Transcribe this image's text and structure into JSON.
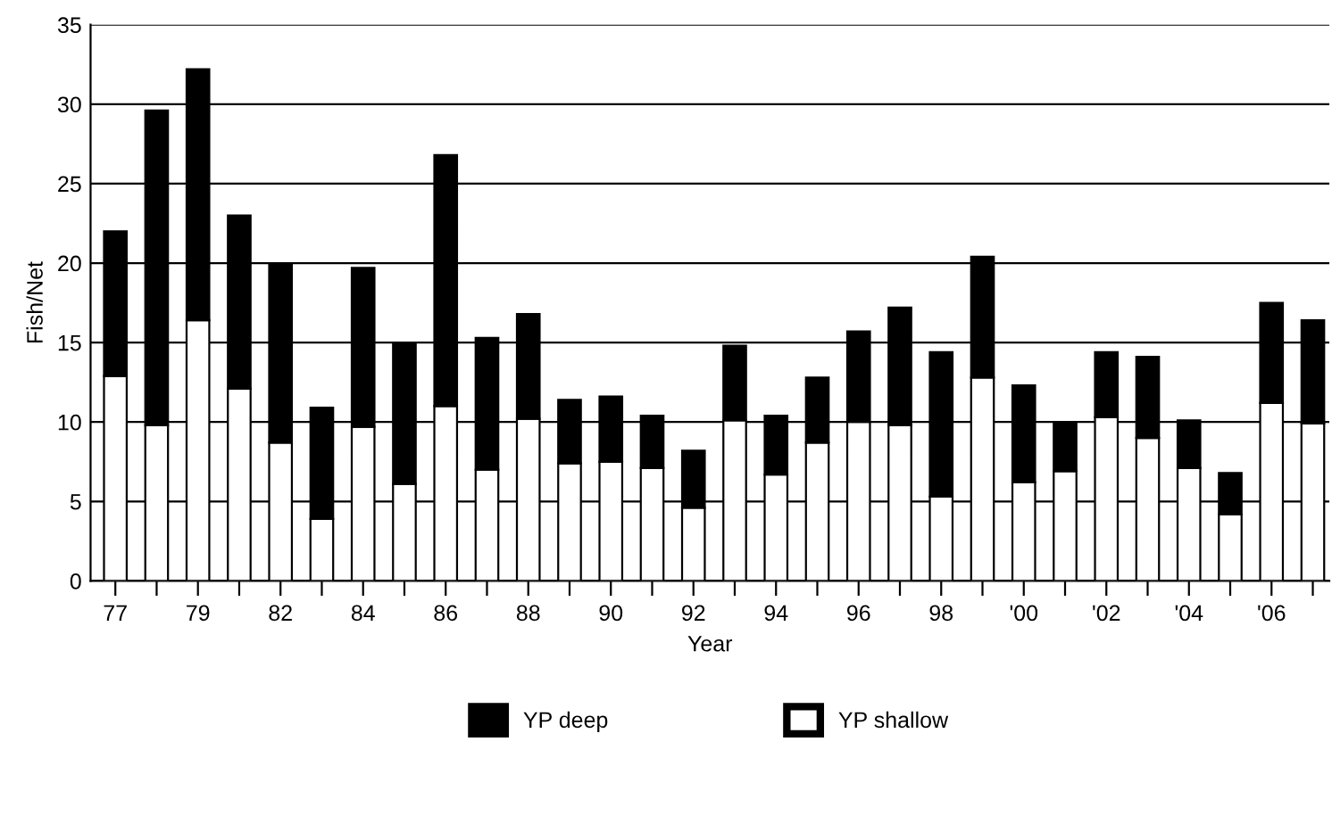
{
  "chart_data": {
    "type": "bar",
    "stacked": true,
    "xlabel": "Year",
    "ylabel": "Fish/Net",
    "categories": [
      "77",
      null,
      "79",
      null,
      "82",
      null,
      "84",
      null,
      "86",
      null,
      "88",
      null,
      "90",
      null,
      "92",
      null,
      "94",
      null,
      "96",
      null,
      "98",
      null,
      "'00",
      null,
      "'02",
      null,
      "'04",
      null,
      "'06",
      null
    ],
    "series": [
      {
        "name": "YP shallow",
        "color": "#ffffff",
        "values": [
          12.9,
          9.8,
          16.4,
          12.1,
          8.7,
          3.9,
          9.7,
          6.1,
          11.0,
          7.0,
          10.2,
          7.4,
          7.5,
          7.1,
          4.6,
          10.1,
          6.7,
          8.7,
          10.0,
          9.8,
          5.3,
          12.8,
          6.2,
          6.9,
          10.3,
          9.0,
          7.1,
          4.2,
          11.2,
          9.9
        ]
      },
      {
        "name": "YP deep",
        "color": "#000000",
        "values": [
          9.1,
          19.8,
          15.8,
          10.9,
          11.2,
          7.0,
          10.0,
          8.8,
          15.8,
          8.3,
          6.6,
          4.0,
          4.1,
          3.3,
          3.6,
          4.7,
          3.7,
          4.1,
          5.7,
          7.4,
          9.1,
          7.6,
          6.1,
          3.0,
          4.1,
          5.1,
          3.0,
          2.6,
          6.3,
          6.5
        ]
      }
    ],
    "ylim": [
      0,
      35
    ],
    "yticks": [
      0,
      5,
      10,
      15,
      20,
      25,
      30,
      35
    ],
    "grid": "y",
    "legend": "bottom"
  }
}
